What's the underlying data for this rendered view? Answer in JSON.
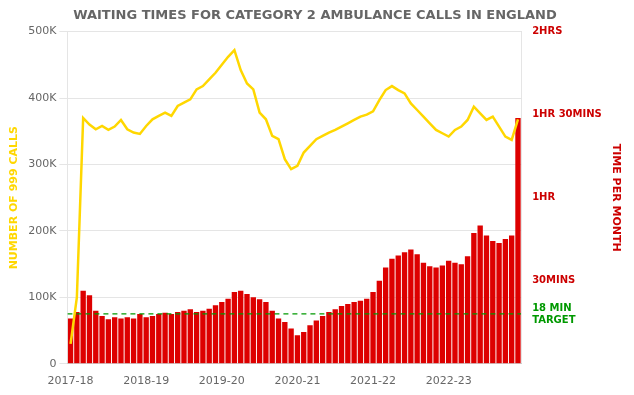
{
  "chart_data": {
    "type": "bar",
    "title": "WAITING TIMES FOR CATEGORY 2 AMBULANCE CALLS IN ENGLAND",
    "categories": [
      "2017-18",
      null,
      null,
      null,
      null,
      null,
      null,
      null,
      null,
      null,
      null,
      null,
      "2018-19",
      null,
      null,
      null,
      null,
      null,
      null,
      null,
      null,
      null,
      null,
      null,
      "2019-20",
      null,
      null,
      null,
      null,
      null,
      null,
      null,
      null,
      null,
      null,
      null,
      "2020-21",
      null,
      null,
      null,
      null,
      null,
      null,
      null,
      null,
      null,
      null,
      null,
      "2021-22",
      null,
      null,
      null,
      null,
      null,
      null,
      null,
      null,
      null,
      null,
      null,
      "2022-23",
      null,
      null,
      null,
      null,
      null,
      null,
      null,
      null,
      null,
      null,
      null
    ],
    "series": [
      {
        "type": "bar",
        "color": "#dd0000",
        "values": [
          68000,
          78000,
          110000,
          103000,
          80000,
          72000,
          67000,
          70000,
          68000,
          70000,
          68000,
          75000,
          70000,
          72000,
          75000,
          77000,
          75000,
          78000,
          80000,
          82000,
          78000,
          80000,
          83000,
          88000,
          93000,
          98000,
          108000,
          110000,
          105000,
          100000,
          97000,
          93000,
          80000,
          68000,
          63000,
          53000,
          43000,
          48000,
          58000,
          65000,
          72000,
          78000,
          82000,
          87000,
          90000,
          93000,
          95000,
          98000,
          108000,
          125000,
          145000,
          158000,
          163000,
          168000,
          172000,
          165000,
          152000,
          147000,
          145000,
          148000,
          155000,
          152000,
          150000,
          162000,
          197000,
          208000,
          193000,
          185000,
          182000,
          188000,
          193000,
          370000
        ]
      },
      {
        "type": "line",
        "color": "#FFD700",
        "values": [
          30000,
          100000,
          370000,
          360000,
          353000,
          358000,
          352000,
          357000,
          367000,
          353000,
          348000,
          346000,
          358000,
          368000,
          373000,
          378000,
          373000,
          388000,
          393000,
          398000,
          413000,
          418000,
          428000,
          438000,
          450000,
          462000,
          472000,
          442000,
          422000,
          413000,
          378000,
          368000,
          343000,
          338000,
          308000,
          293000,
          298000,
          318000,
          328000,
          338000,
          343000,
          348000,
          352000,
          357000,
          362000,
          367000,
          372000,
          375000,
          380000,
          397000,
          412000,
          418000,
          412000,
          407000,
          392000,
          382000,
          372000,
          362000,
          352000,
          347000,
          342000,
          352000,
          357000,
          367000,
          387000,
          377000,
          367000,
          372000,
          357000,
          342000,
          337000,
          368000
        ]
      }
    ],
    "hlines": [
      {
        "value": 75000,
        "color": "#009900",
        "line_style": "dashed"
      }
    ],
    "ylabel": "NUMBER OF 999 CALLS",
    "ylabel_color": "#FFD700",
    "y2label": "TIME PER MONTH",
    "y2label_color": "#cc0000",
    "ylim": [
      0,
      500000
    ],
    "yticks": [
      {
        "value": 0,
        "label": "0"
      },
      {
        "value": 100000,
        "label": "100K"
      },
      {
        "value": 200000,
        "label": "200K"
      },
      {
        "value": 300000,
        "label": "300K"
      },
      {
        "value": 400000,
        "label": "400K"
      },
      {
        "value": 500000,
        "label": "500K"
      }
    ],
    "y2lim": [
      0,
      500000
    ],
    "y2ticks": [
      {
        "value": 500000,
        "label": "2HRS"
      },
      {
        "value": 375000,
        "label": "1HR 30MINS"
      },
      {
        "value": 250000,
        "label": "1HR"
      },
      {
        "value": 125000,
        "label": "30MINS"
      },
      {
        "value": 75000,
        "label": "18 MIN\nTARGET"
      }
    ],
    "y2tick_colors": [
      "#cc0000",
      "#cc0000",
      "#cc0000",
      "#cc0000",
      "#009900"
    ],
    "grid": true
  }
}
